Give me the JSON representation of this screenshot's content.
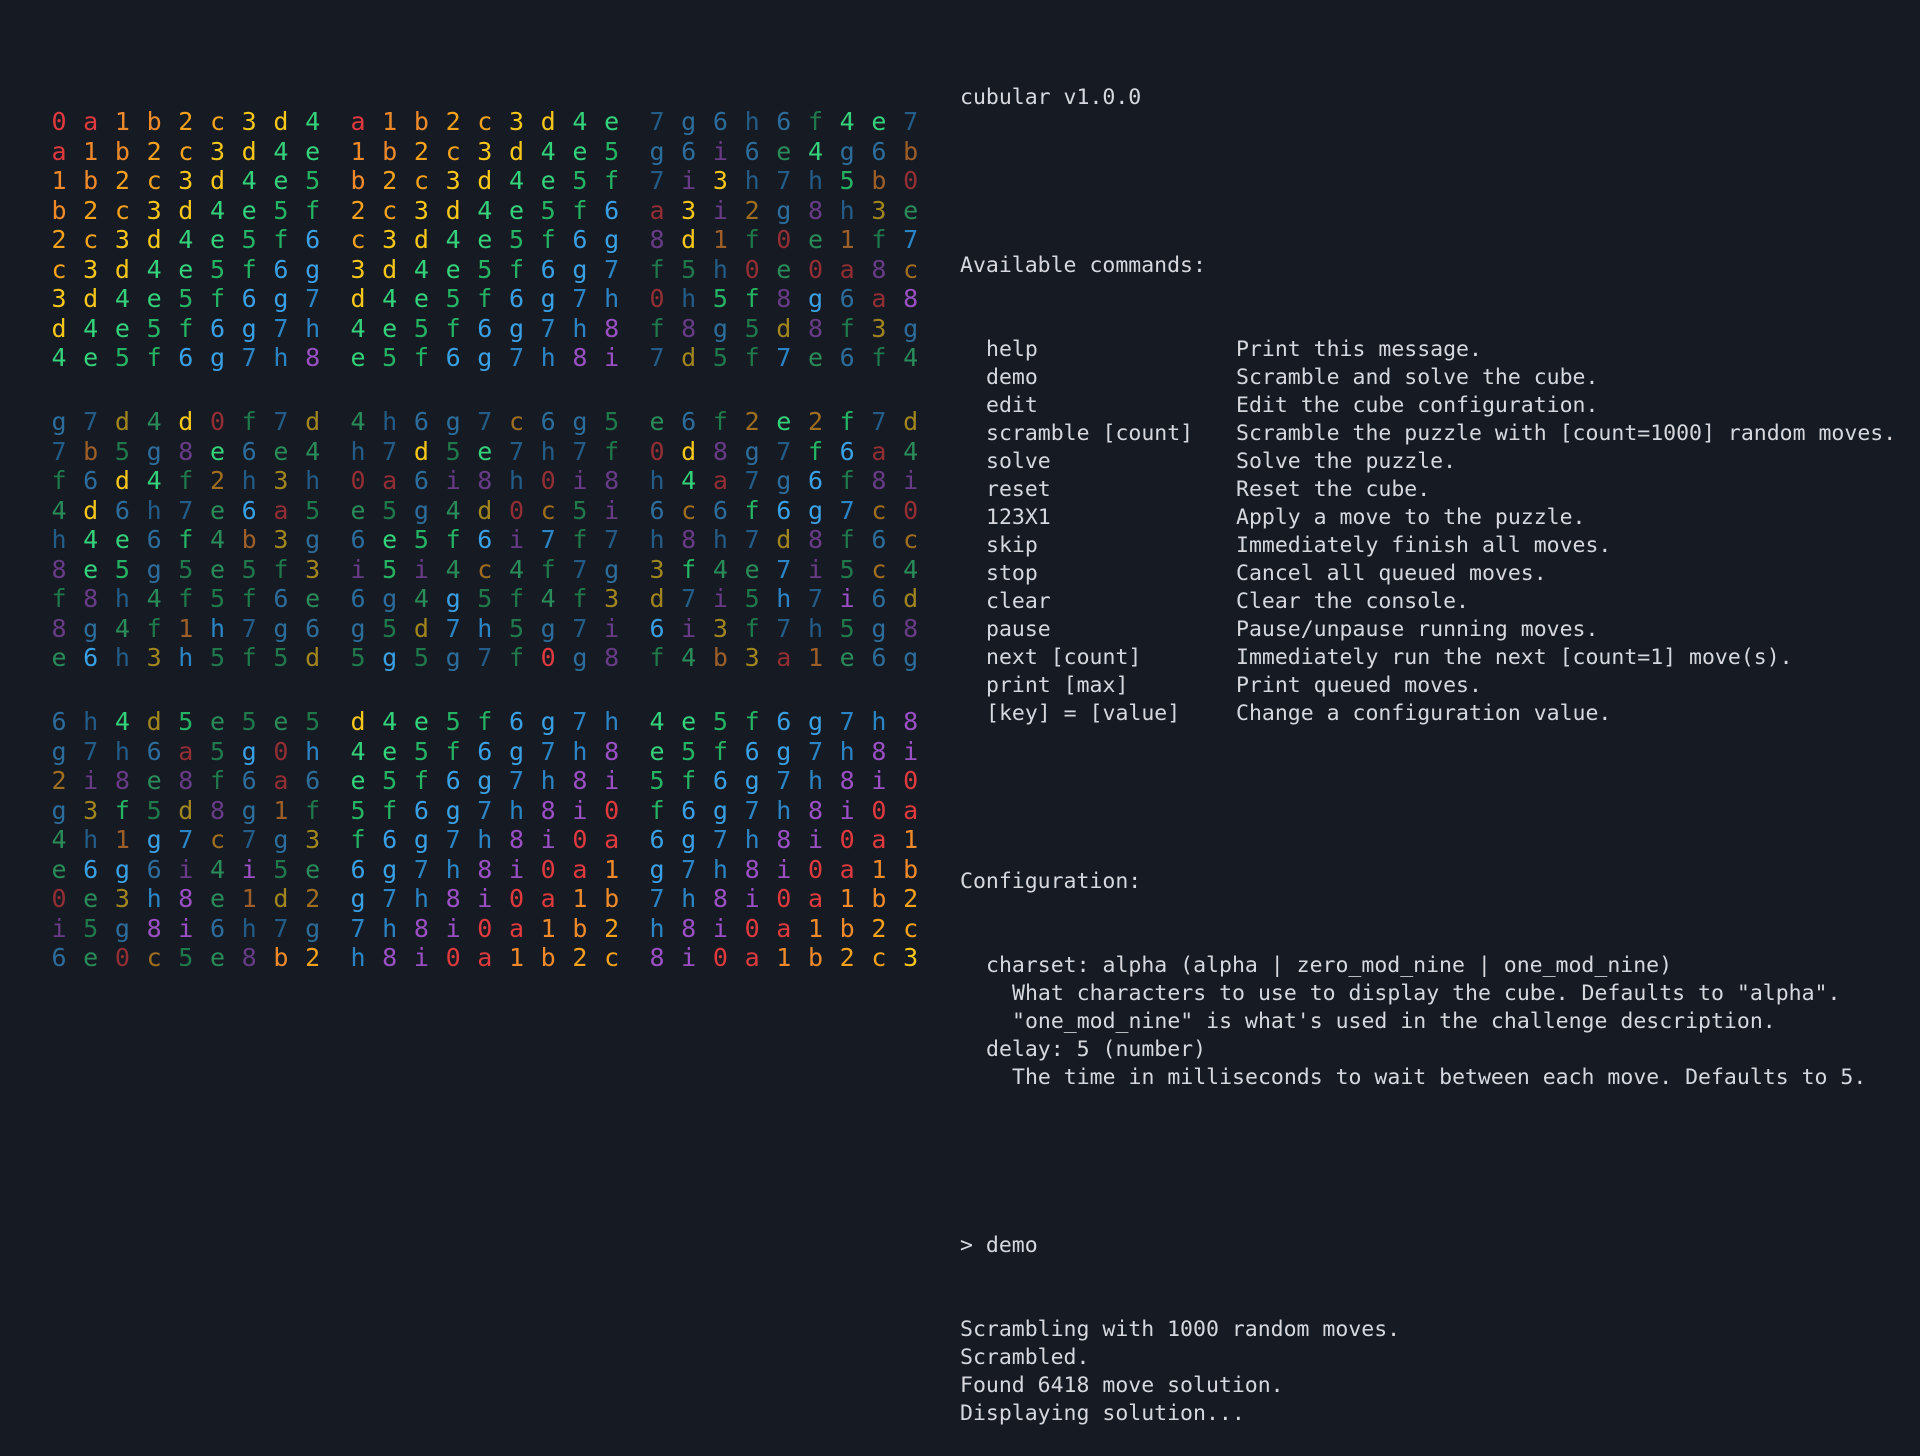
{
  "cube": {
    "charset_sequence": "0a1b2c3d4e5f6g7h8i",
    "colors": {
      "0": "#e03a3e",
      "a": "#e03a3e",
      "1": "#ef8a2a",
      "b": "#ef8a2a",
      "2": "#f4a21c",
      "c": "#f4a21c",
      "3": "#f6c619",
      "d": "#f6c619",
      "4": "#34d27a",
      "e": "#34d27a",
      "5": "#25b463",
      "f": "#25b463",
      "6": "#3aa0e4",
      "g": "#3aa0e4",
      "7": "#2b85c4",
      "h": "#2b85c4",
      "8": "#9b4fc4",
      "i": "#9b4fc4"
    },
    "background": "#161a23",
    "blocks": [
      [
        [
          "0a1b2c3d4",
          "a1b2c3d4e",
          "1b2c3d4e5",
          "b2c3d4e5f",
          "2c3d4e5f6",
          "c3d4e5f6g",
          "3d4e5f6g7",
          "d4e5f6g7h",
          "4e5f6g7h8"
        ],
        [
          "a1b2c3d4e",
          "1b2c3d4e5",
          "b2c3d4e5f",
          "2c3d4e5f6",
          "c3d4e5f6g",
          "3d4e5f6g7",
          "d4e5f6g7h",
          "4e5f6g7h8",
          "e5f6g7h8i"
        ],
        [
          "7g6h6f4e7",
          "g6i6e4g6b",
          "7i3h7h5b0",
          "a3i2g8h3e",
          "8d1f0e1f7",
          "f5h0e0a8c",
          "0h5f8g6a8",
          "f8g5d8f3g",
          "7d5f7e6f4"
        ]
      ],
      [
        [
          "g7d4d0f7d",
          "7b5g8e6e4",
          "f6d4f2h3h",
          "4d6h7e6a5",
          "h4e6f4b3g",
          "8e5g5e5f3",
          "f8h4f5f6e",
          "8g4f1h7g6",
          "e6h3h5f5d"
        ],
        [
          "4h6g7c6g5",
          "h7d5e7h7f",
          "0a6i8h0i8",
          "e5g4d0c5i",
          "6e5f6i7f7",
          "i5i4c4f7g",
          "6g4g5f4f3",
          "g5d7h5g7i",
          "5g5g7f0g8"
        ],
        [
          "e6f2e2f7d",
          "0d8g7f6a4",
          "h4a7g6f8i",
          "6c6f6g7c0",
          "h8h7d8f6c",
          "3f4e7i5c4",
          "d7i5h7i6d",
          "6i3f7h5g8",
          "f4b3a1e6g"
        ]
      ],
      [
        [
          "6h4d5e5e5",
          "g7h6a5g0h",
          "2i8e8f6a6",
          "g3f5d8g1f",
          "4h1g7c7g3",
          "e6g6i4i5e",
          "0e3h8e1d2",
          "i5g8i6h7g",
          "6e0c5e8b2"
        ],
        [
          "d4e5f6g7h",
          "4e5f6g7h8",
          "e5f6g7h8i",
          "5f6g7h8i0",
          "f6g7h8i0a",
          "6g7h8i0a1",
          "g7h8i0a1b",
          "7h8i0a1b2",
          "h8i0a1b2c"
        ],
        [
          "4e5f6g7h8",
          "e5f6g7h8i",
          "5f6g7h8i0",
          "f6g7h8i0a",
          "6g7h8i0a1",
          "g7h8i0a1b",
          "7h8i0a1b2",
          "h8i0a1b2c",
          "8i0a1b2c3"
        ]
      ]
    ]
  },
  "console": {
    "title": "cubular v1.0.0",
    "commands_header": "Available commands:",
    "commands": [
      {
        "cmd": "help",
        "desc": "Print this message."
      },
      {
        "cmd": "demo",
        "desc": "Scramble and solve the cube."
      },
      {
        "cmd": "edit",
        "desc": "Edit the cube configuration."
      },
      {
        "cmd": "scramble [count]",
        "desc": "Scramble the puzzle with [count=1000] random moves."
      },
      {
        "cmd": "solve",
        "desc": "Solve the puzzle."
      },
      {
        "cmd": "reset",
        "desc": "Reset the cube."
      },
      {
        "cmd": "123X1",
        "desc": "Apply a move to the puzzle."
      },
      {
        "cmd": "skip",
        "desc": "Immediately finish all moves."
      },
      {
        "cmd": "stop",
        "desc": "Cancel all queued moves."
      },
      {
        "cmd": "clear",
        "desc": "Clear the console."
      },
      {
        "cmd": "pause",
        "desc": "Pause/unpause running moves."
      },
      {
        "cmd": "next [count]",
        "desc": "Immediately run the next [count=1] move(s)."
      },
      {
        "cmd": "print [max]",
        "desc": "Print queued moves."
      },
      {
        "cmd": "[key] = [value]",
        "desc": "Change a configuration value."
      }
    ],
    "config_header": "Configuration:",
    "config": [
      {
        "setting": "charset: alpha (alpha | zero_mod_nine | one_mod_nine)",
        "help": [
          "What characters to use to display the cube. Defaults to \"alpha\".",
          "\"one_mod_nine\" is what's used in the challenge description."
        ]
      },
      {
        "setting": "delay: 5 (number)",
        "help": [
          "The time in milliseconds to wait between each move. Defaults to 5."
        ]
      }
    ],
    "prompt": "> demo",
    "log": [
      "Scrambling with 1000 random moves.",
      "Scrambled.",
      "Found 6418 move solution.",
      "Displaying solution..."
    ]
  }
}
